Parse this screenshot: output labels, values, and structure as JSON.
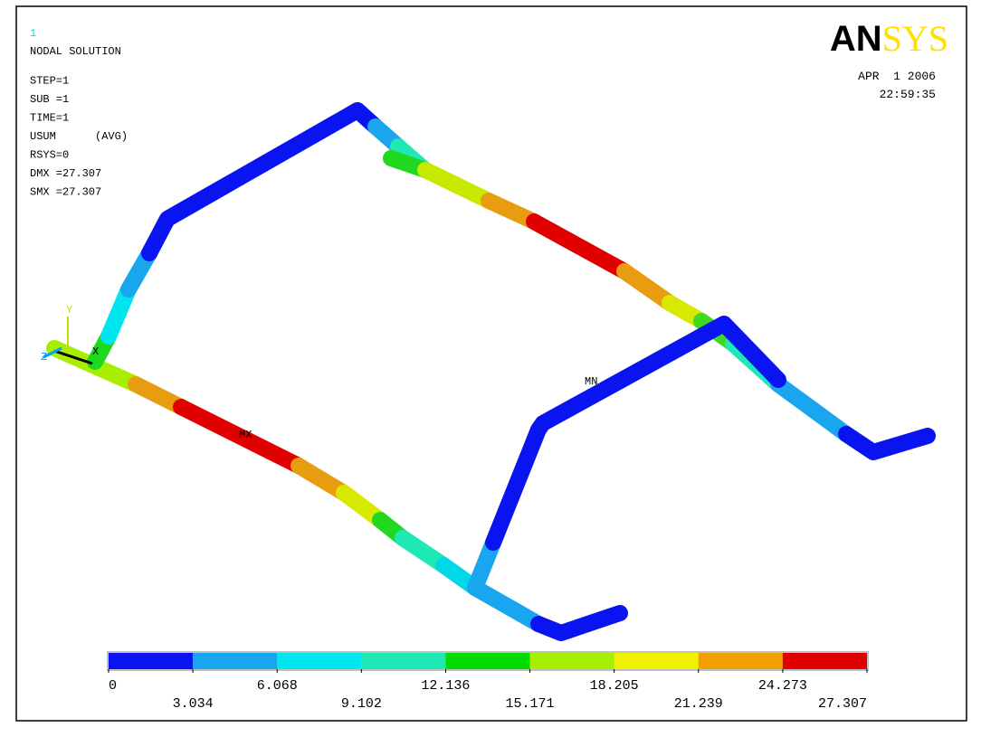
{
  "window_number": "1",
  "info": [
    "NODAL SOLUTION",
    "STEP=1",
    "SUB =1",
    "TIME=1",
    "USUM      (AVG)",
    "RSYS=0",
    "DMX =27.307",
    "SMX =27.307"
  ],
  "logo": {
    "an": "AN",
    "sys": "SYS"
  },
  "date": "APR  1 2006",
  "time": "22:59:35",
  "triad": {
    "y": "Y",
    "x": "X",
    "z": "Z"
  },
  "markers": {
    "max": "MX",
    "min": "MN"
  },
  "legend": {
    "colors": [
      "#0a14f0",
      "#1aa6ee",
      "#00e6ee",
      "#1ee8b4",
      "#00dc00",
      "#a8ee00",
      "#f0f000",
      "#f0a000",
      "#e00000"
    ],
    "ticks": [
      0,
      3.034,
      6.068,
      9.102,
      12.136,
      15.171,
      18.205,
      21.239,
      24.273,
      27.307
    ]
  }
}
